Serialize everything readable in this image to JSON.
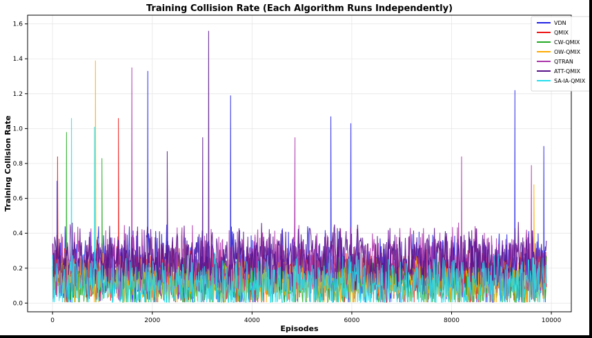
{
  "chart_data": {
    "type": "line",
    "title": "Training Collision Rate (Each Algorithm Runs Independently)",
    "xlabel": "Episodes",
    "ylabel": "Training Collision Rate",
    "xlim": [
      -500,
      10400
    ],
    "ylim": [
      -0.05,
      1.65
    ],
    "xticks": [
      0,
      2000,
      4000,
      6000,
      8000,
      10000
    ],
    "yticks": [
      0.0,
      0.2,
      0.4,
      0.6,
      0.8,
      1.0,
      1.2,
      1.4,
      1.6
    ],
    "grid": true,
    "legend_position": "top-right",
    "x_range": [
      0,
      9900
    ],
    "series": [
      {
        "name": "VDN",
        "color": "#2222e6",
        "base": 0.2,
        "spread": 0.25,
        "spikes": [
          [
            90,
            0.7
          ],
          [
            1910,
            1.33
          ],
          [
            3570,
            1.19
          ],
          [
            5580,
            1.07
          ],
          [
            5980,
            1.03
          ],
          [
            9270,
            1.22
          ],
          [
            9850,
            0.9
          ]
        ]
      },
      {
        "name": "QMIX",
        "color": "#ee1111",
        "base": 0.15,
        "spread": 0.2,
        "spikes": [
          [
            100,
            0.84
          ],
          [
            1320,
            1.06
          ]
        ]
      },
      {
        "name": "CW-QMIX",
        "color": "#22aa22",
        "base": 0.12,
        "spread": 0.18,
        "spikes": [
          [
            280,
            0.98
          ],
          [
            990,
            0.83
          ]
        ]
      },
      {
        "name": "OW-QMIX",
        "color": "#ffaa00",
        "base": 0.12,
        "spread": 0.18,
        "spikes": [
          [
            860,
            1.39
          ],
          [
            9650,
            0.68
          ]
        ]
      },
      {
        "name": "QTRAN",
        "color": "#aa33aa",
        "base": 0.22,
        "spread": 0.25,
        "spikes": [
          [
            1590,
            1.35
          ],
          [
            4860,
            0.95
          ],
          [
            8200,
            0.84
          ],
          [
            9600,
            0.79
          ]
        ]
      },
      {
        "name": "ATT-QMIX",
        "color": "#551188",
        "base": 0.25,
        "spread": 0.22,
        "spikes": [
          [
            3130,
            1.56
          ],
          [
            3010,
            0.95
          ],
          [
            2300,
            0.87
          ]
        ]
      },
      {
        "name": "SA-IA-QMIX",
        "color": "#22ddee",
        "base": 0.1,
        "spread": 0.2,
        "spikes": [
          [
            380,
            1.06
          ],
          [
            840,
            1.01
          ]
        ]
      }
    ]
  }
}
